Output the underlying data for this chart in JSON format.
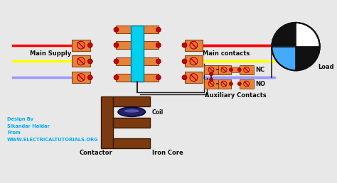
{
  "bg_color": "#e8e8e8",
  "orange": "#E8813A",
  "red_dot": "#CC0000",
  "brown": "#7B3A10",
  "cyan": "#00CFEF",
  "wire_red": "#FF0000",
  "wire_yellow": "#FFFF00",
  "wire_blue": "#9999FF",
  "load_black": "#111111",
  "load_blue": "#44AAFF",
  "load_white": "#FFFFFF",
  "text_cyan": "#00AAFF",
  "text_black": "#111111",
  "title_text": "Design By\nSikandar Haidar\nFrom\nWWW.ELECTRICALTUTORIALS.ORG",
  "main_supply_label": "Main Supply",
  "main_contacts_label": "Main contacts",
  "coil_label": "Coil",
  "contactor_label": "Contactor",
  "iron_core_label": "Iron Core",
  "nc_label": "NC",
  "no_label": "NO",
  "aux_label": "Auxiliary Contacts",
  "load_label": "Load"
}
